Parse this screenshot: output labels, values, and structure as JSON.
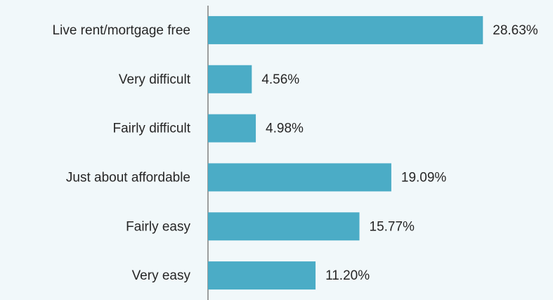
{
  "chart_data": {
    "type": "barh",
    "categories": [
      "Live rent/mortgage free",
      "Very difficult",
      "Fairly difficult",
      "Just about affordable",
      "Fairly easy",
      "Very easy"
    ],
    "values": [
      28.63,
      4.56,
      4.98,
      19.09,
      15.77,
      11.2
    ],
    "value_labels": [
      "28.63%",
      "4.56%",
      "4.98%",
      "19.09%",
      "15.77%",
      "11.20%"
    ],
    "color": "#4bacc6",
    "xlim": [
      0,
      30
    ]
  }
}
